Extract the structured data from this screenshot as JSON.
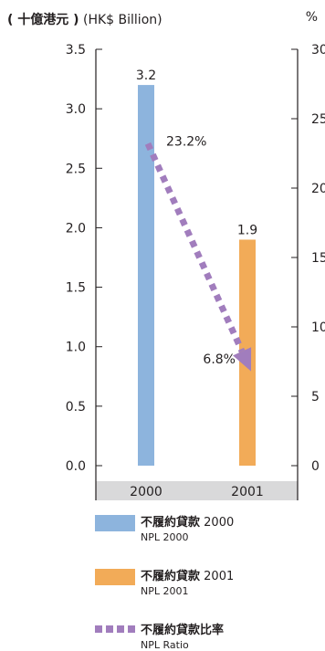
{
  "chart_data": {
    "type": "bar",
    "unit_left_zh": "( 十億港元 )",
    "unit_left_en": "(HK$ Billion)",
    "unit_right": "%",
    "categories": [
      "2000",
      "2001"
    ],
    "left_axis": {
      "ylim": [
        0,
        3.5
      ],
      "ticks": [
        "0.0",
        "0.5",
        "1.0",
        "1.5",
        "2.0",
        "2.5",
        "3.0",
        "3.5"
      ]
    },
    "right_axis": {
      "ylim": [
        0,
        30
      ],
      "ticks": [
        "0",
        "5",
        "10",
        "15",
        "20",
        "25",
        "30"
      ]
    },
    "bars": [
      {
        "category": "2000",
        "value": 3.2,
        "label": "3.2",
        "color": "#8db4dd"
      },
      {
        "category": "2001",
        "value": 1.9,
        "label": "1.9",
        "color": "#f2ab58"
      }
    ],
    "ratio_line": {
      "color": "#a17dbd",
      "points": [
        {
          "category": "2000",
          "value": 23.2,
          "label": "23.2%"
        },
        {
          "category": "2001",
          "value": 6.8,
          "label": "6.8%"
        }
      ]
    },
    "legend": [
      {
        "zh_bold": "不履約貸款",
        "zh_rest": " 2000",
        "en": "NPL 2000",
        "swatch": "bar",
        "color": "#8db4dd"
      },
      {
        "zh_bold": "不履約貸款",
        "zh_rest": " 2001",
        "en": "NPL 2001",
        "swatch": "bar",
        "color": "#f2ab58"
      },
      {
        "zh_bold": "不履約貸款比率",
        "zh_rest": "",
        "en": "NPL Ratio",
        "swatch": "dash",
        "color": "#a17dbd"
      }
    ]
  }
}
